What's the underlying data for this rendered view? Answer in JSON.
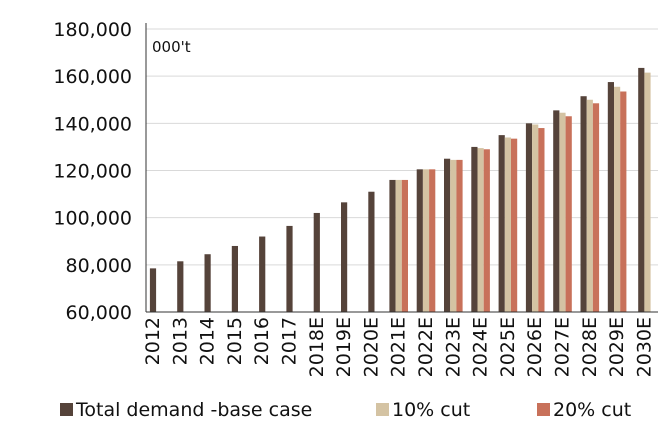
{
  "chart_data": {
    "type": "bar",
    "unit_label": "000't",
    "categories": [
      "2012",
      "2013",
      "2014",
      "2015",
      "2016",
      "2017",
      "2018E",
      "2019E",
      "2020E",
      "2021E",
      "2022E",
      "2023E",
      "2024E",
      "2025E",
      "2026E",
      "2027E",
      "2028E",
      "2029E",
      "2030E"
    ],
    "series": [
      {
        "name": "Total demand -base case",
        "color": "#55433a",
        "values": [
          78500,
          81500,
          84500,
          88000,
          92000,
          96500,
          102000,
          106500,
          111000,
          116000,
          120500,
          125000,
          130000,
          135000,
          140000,
          145500,
          151500,
          157500,
          163500
        ]
      },
      {
        "name": "10% cut",
        "color": "#d4c3a3",
        "values": [
          null,
          null,
          null,
          null,
          null,
          null,
          null,
          null,
          null,
          116000,
          120500,
          124500,
          129500,
          134000,
          139500,
          144500,
          150000,
          155500,
          161500
        ]
      },
      {
        "name": "20% cut",
        "color": "#c8715a",
        "values": [
          null,
          null,
          null,
          null,
          null,
          null,
          null,
          null,
          null,
          116000,
          120500,
          124500,
          129000,
          133500,
          138000,
          143000,
          148500,
          153500,
          null
        ]
      }
    ],
    "ylim": [
      60000,
      180000
    ],
    "yticks": [
      60000,
      80000,
      100000,
      120000,
      140000,
      160000,
      180000
    ],
    "ytick_labels": [
      "60,000",
      "80,000",
      "100,000",
      "120,000",
      "140,000",
      "160,000",
      "180,000"
    ],
    "grid": "horizontal",
    "legend": "bottom"
  }
}
